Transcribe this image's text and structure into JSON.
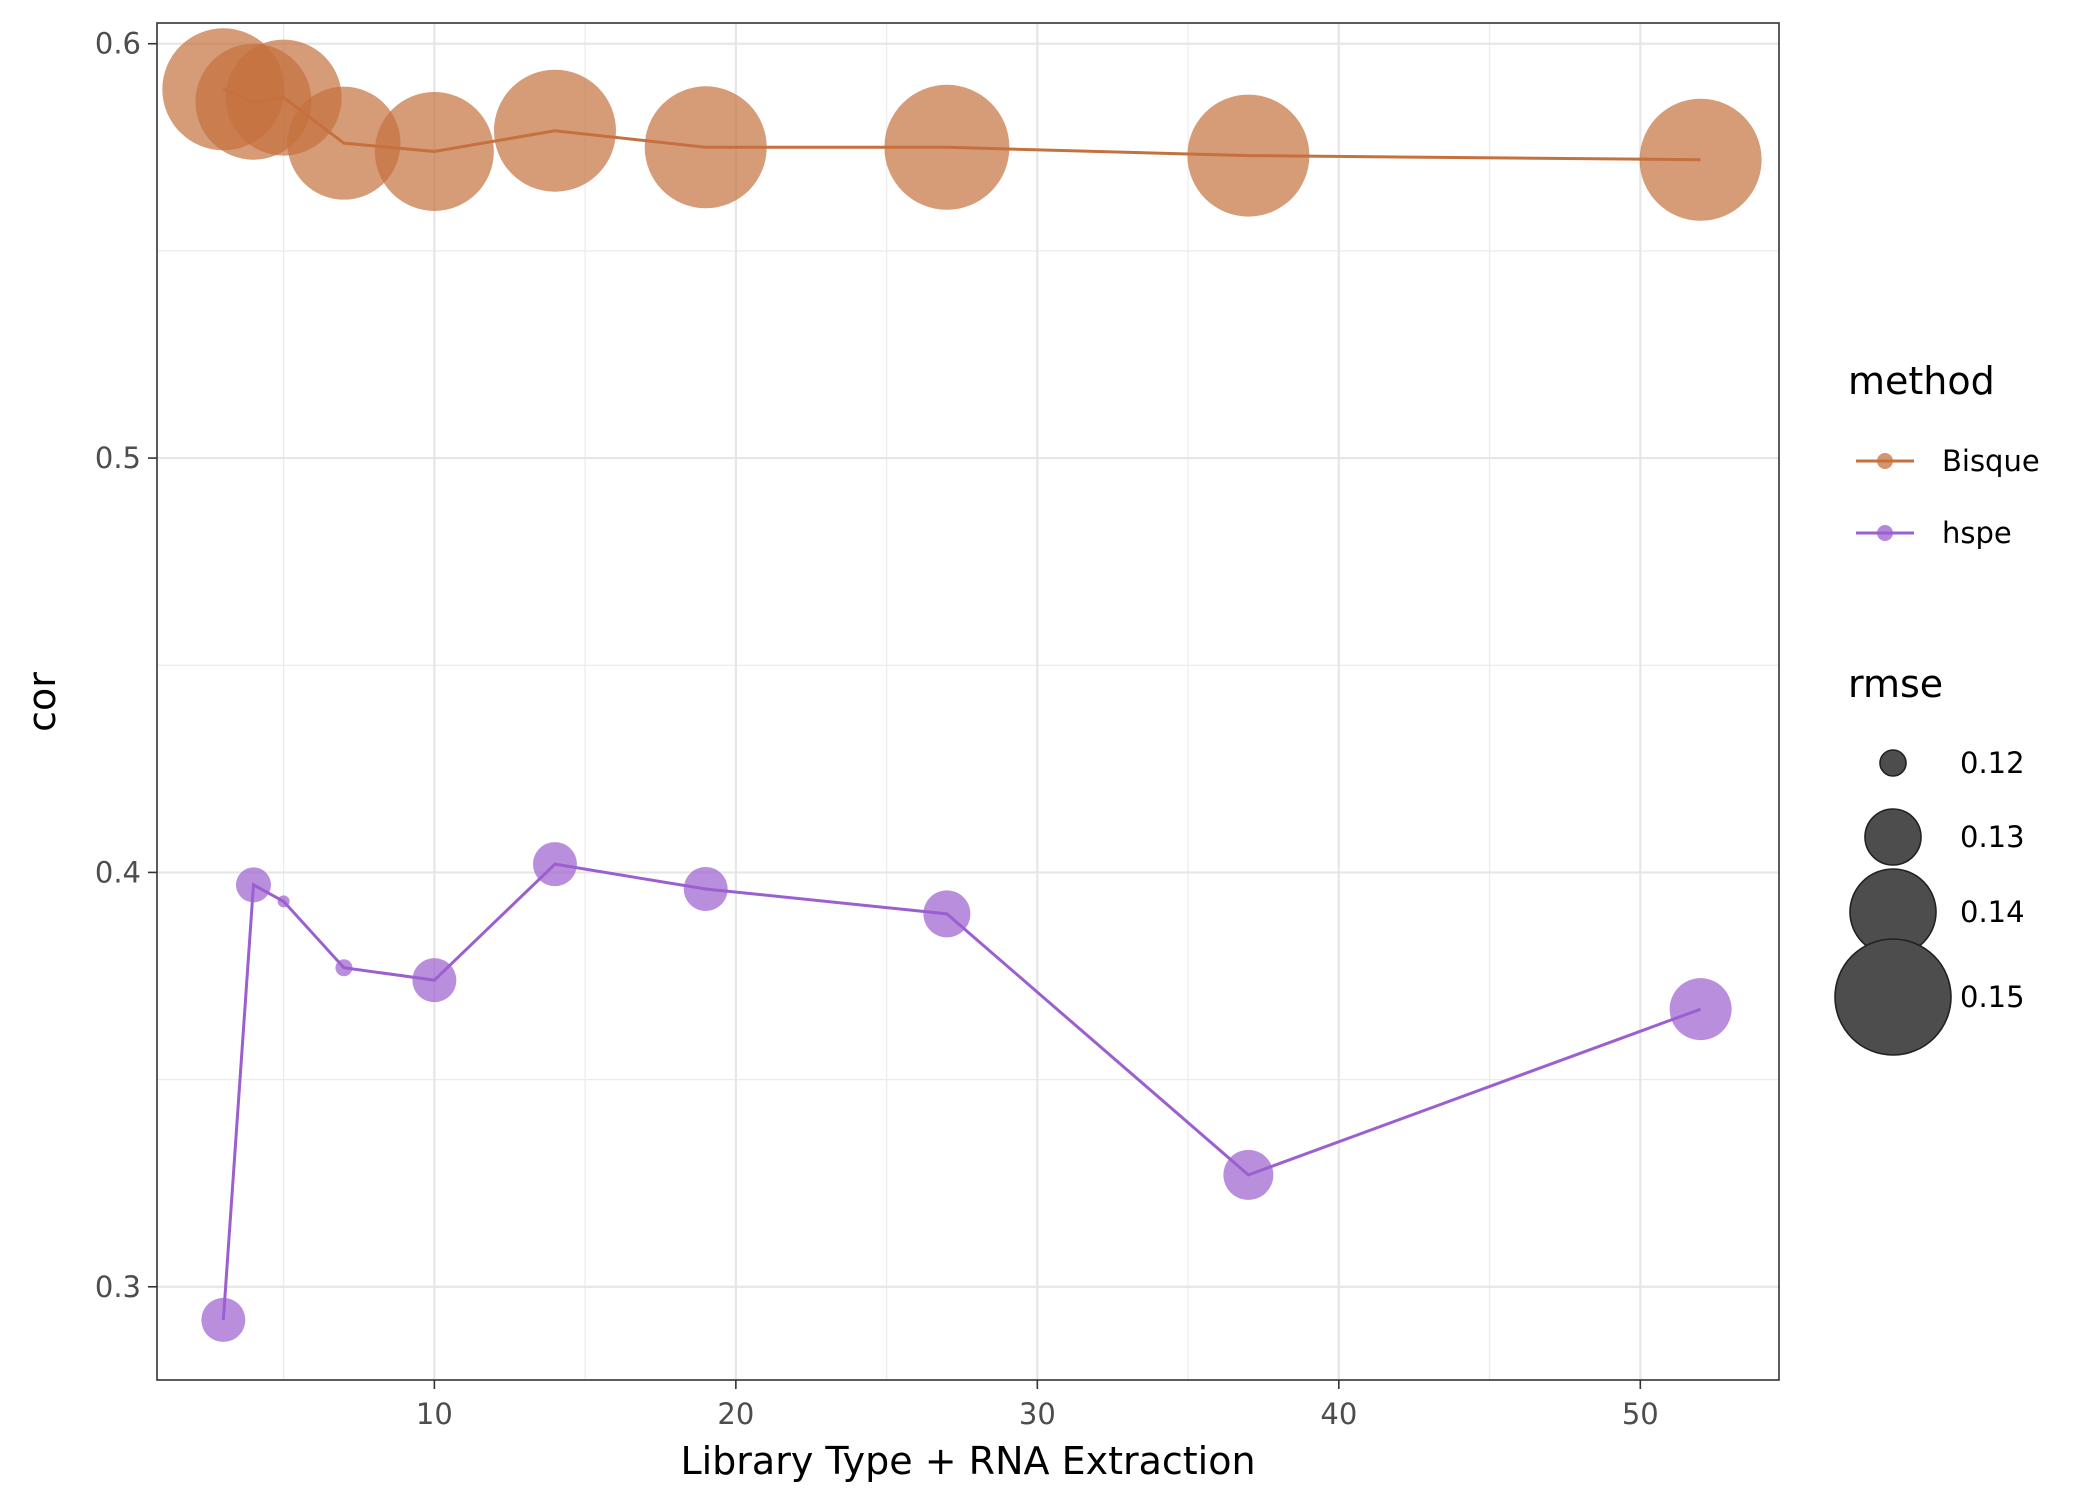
{
  "chart_data": {
    "type": "scatter",
    "title": "",
    "xlabel": "Library Type + RNA Extraction",
    "ylabel": "cor",
    "xlim": [
      0.8,
      54.6
    ],
    "ylim": [
      0.2775,
      0.605
    ],
    "x_ticks": [
      10,
      20,
      30,
      40,
      50
    ],
    "x_tick_labels": [
      "10",
      "20",
      "30",
      "40",
      "50"
    ],
    "y_ticks": [
      0.3,
      0.4,
      0.5,
      0.6
    ],
    "y_tick_labels": [
      "0.3",
      "0.4",
      "0.5",
      "0.6"
    ],
    "grid": true,
    "series": [
      {
        "name": "Bisque",
        "color": "#C5713D",
        "x": [
          3,
          4,
          5,
          7,
          10,
          14,
          19,
          27,
          37,
          52
        ],
        "y": [
          0.589,
          0.586,
          0.587,
          0.576,
          0.574,
          0.579,
          0.575,
          0.575,
          0.573,
          0.572
        ],
        "rmse": [
          0.152,
          0.15,
          0.15,
          0.149,
          0.151,
          0.152,
          0.152,
          0.153,
          0.152,
          0.152
        ]
      },
      {
        "name": "hspe",
        "color": "#9B5FCF",
        "x": [
          3,
          4,
          5,
          7,
          10,
          14,
          19,
          27,
          37,
          52
        ],
        "y": [
          0.292,
          0.397,
          0.393,
          0.377,
          0.374,
          0.402,
          0.396,
          0.39,
          0.327,
          0.367
        ],
        "rmse": [
          0.126,
          0.123,
          0.115,
          0.117,
          0.126,
          0.126,
          0.126,
          0.127,
          0.128,
          0.132
        ]
      }
    ],
    "legend": {
      "placement": "right",
      "color_title": "method",
      "color_entries": [
        "Bisque",
        "hspe"
      ],
      "size_title": "rmse",
      "size_entries": [
        {
          "label": "0.12",
          "value": 0.12
        },
        {
          "label": "0.13",
          "value": 0.13
        },
        {
          "label": "0.14",
          "value": 0.14
        },
        {
          "label": "0.15",
          "value": 0.15
        }
      ]
    }
  }
}
